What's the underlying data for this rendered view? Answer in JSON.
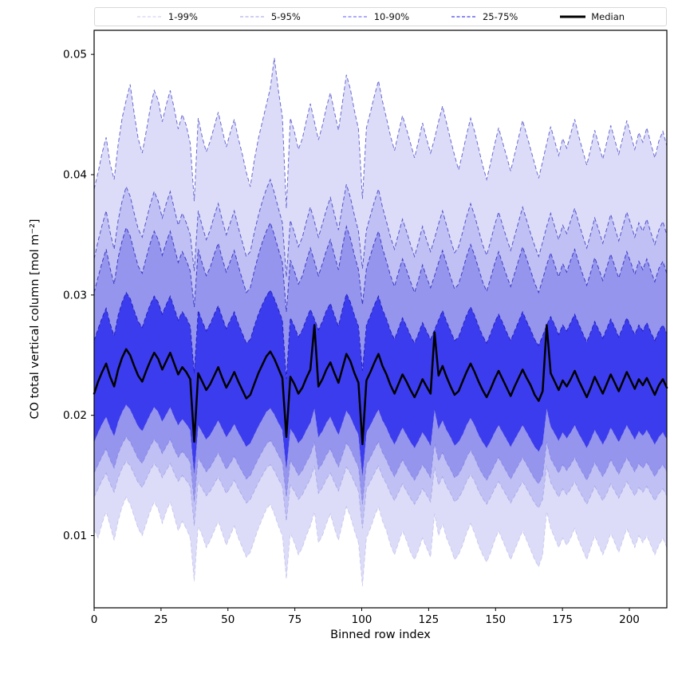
{
  "legend": {
    "items": [
      {
        "label": "1-99%",
        "color": "#d4d4f6",
        "dash": true,
        "width": 1.3
      },
      {
        "label": "5-95%",
        "color": "#b0b0f1",
        "dash": true,
        "width": 1.3
      },
      {
        "label": "10-90%",
        "color": "#7b7bf7",
        "dash": true,
        "width": 1.3
      },
      {
        "label": "25-75%",
        "color": "#4444ee",
        "dash": true,
        "width": 1.3
      },
      {
        "label": "Median",
        "color": "#000000",
        "dash": false,
        "width": 3
      }
    ]
  },
  "chart_data": {
    "type": "area",
    "title": "",
    "xlabel": "Binned row index",
    "ylabel": "CO total vertical column [mol m⁻²]",
    "legend_position": "top",
    "grid": false,
    "background": "#ffffff",
    "xlim": [
      0,
      214
    ],
    "ylim": [
      0.004,
      0.052
    ],
    "xticks": [
      0,
      25,
      50,
      75,
      100,
      125,
      150,
      175,
      200
    ],
    "xtick_labels": [
      "0",
      "25",
      "50",
      "75",
      "100",
      "125",
      "150",
      "175",
      "200"
    ],
    "yticks": [
      0.01,
      0.02,
      0.03,
      0.04,
      0.05
    ],
    "ytick_labels": [
      "0.01",
      "0.02",
      "0.03",
      "0.04",
      "0.05"
    ],
    "x_start": 0,
    "x_step": 1.4965,
    "value_scale": 0.0001,
    "units": "mol m⁻²",
    "bands": [
      {
        "label": "1-99%",
        "lower": "p01",
        "upper": "p99",
        "fill": "#dcdcf8",
        "edge": "#6a6ad2"
      },
      {
        "label": "5-95%",
        "lower": "p05",
        "upper": "p95",
        "fill": "#c0c0f4",
        "edge": "#5454cc"
      },
      {
        "label": "10-90%",
        "lower": "p10",
        "upper": "p90",
        "fill": "#9595ee",
        "edge": "#3c3cc6"
      },
      {
        "label": "25-75%",
        "lower": "p25",
        "upper": "p75",
        "fill": "#3c3cef",
        "edge": "#2222bd"
      }
    ],
    "median": {
      "label": "Median",
      "color": "#000000",
      "width": 2.5
    },
    "percentiles": {
      "p99": [
        388,
        402,
        418,
        431,
        409,
        396,
        425,
        447,
        462,
        475,
        451,
        430,
        418,
        436,
        455,
        470,
        462,
        444,
        458,
        470,
        455,
        438,
        450,
        441,
        426,
        378,
        447,
        431,
        419,
        428,
        440,
        452,
        437,
        423,
        435,
        446,
        430,
        417,
        402,
        390,
        412,
        430,
        444,
        458,
        472,
        497,
        470,
        448,
        372,
        447,
        436,
        421,
        430,
        445,
        459,
        444,
        429,
        441,
        456,
        468,
        452,
        437,
        460,
        483,
        471,
        453,
        438,
        380,
        439,
        452,
        466,
        478,
        461,
        447,
        432,
        420,
        435,
        449,
        438,
        426,
        414,
        428,
        443,
        430,
        418,
        430,
        444,
        457,
        443,
        429,
        416,
        404,
        418,
        433,
        447,
        436,
        422,
        408,
        396,
        410,
        425,
        439,
        427,
        415,
        403,
        417,
        431,
        445,
        433,
        421,
        409,
        397,
        411,
        426,
        440,
        428,
        416,
        430,
        422,
        434,
        446,
        432,
        420,
        408,
        422,
        437,
        425,
        413,
        427,
        441,
        429,
        417,
        431,
        445,
        433,
        421,
        435,
        427,
        439,
        426,
        414,
        428,
        436,
        424
      ],
      "p95": [
        330,
        345,
        358,
        370,
        352,
        338,
        362,
        378,
        390,
        382,
        368,
        355,
        348,
        362,
        375,
        386,
        378,
        364,
        376,
        386,
        372,
        358,
        368,
        360,
        350,
        320,
        370,
        357,
        346,
        354,
        366,
        376,
        362,
        350,
        360,
        370,
        356,
        344,
        332,
        336,
        352,
        366,
        378,
        388,
        396,
        385,
        372,
        360,
        315,
        362,
        352,
        340,
        348,
        361,
        373,
        361,
        348,
        359,
        371,
        381,
        367,
        354,
        374,
        392,
        381,
        366,
        353,
        322,
        354,
        366,
        378,
        388,
        373,
        361,
        348,
        338,
        351,
        363,
        353,
        342,
        332,
        344,
        357,
        346,
        336,
        347,
        359,
        370,
        358,
        346,
        335,
        340,
        352,
        365,
        376,
        366,
        354,
        342,
        333,
        345,
        358,
        369,
        358,
        347,
        337,
        349,
        361,
        373,
        362,
        351,
        341,
        332,
        344,
        357,
        368,
        357,
        346,
        358,
        351,
        362,
        372,
        360,
        349,
        339,
        351,
        364,
        354,
        343,
        355,
        367,
        356,
        345,
        357,
        369,
        359,
        348,
        360,
        353,
        363,
        352,
        342,
        354,
        361,
        350
      ],
      "p90": [
        302,
        315,
        327,
        338,
        322,
        309,
        331,
        345,
        356,
        349,
        336,
        324,
        318,
        331,
        343,
        353,
        346,
        333,
        344,
        353,
        340,
        327,
        336,
        329,
        320,
        290,
        338,
        326,
        316,
        323,
        334,
        343,
        330,
        319,
        328,
        337,
        324,
        313,
        302,
        306,
        320,
        333,
        344,
        353,
        360,
        350,
        338,
        327,
        286,
        329,
        320,
        309,
        316,
        328,
        339,
        328,
        316,
        326,
        337,
        346,
        333,
        321,
        340,
        357,
        347,
        333,
        321,
        292,
        322,
        333,
        344,
        353,
        339,
        328,
        316,
        307,
        319,
        330,
        321,
        311,
        302,
        313,
        325,
        315,
        306,
        316,
        327,
        337,
        326,
        315,
        305,
        309,
        320,
        332,
        342,
        333,
        322,
        311,
        303,
        314,
        326,
        336,
        326,
        316,
        307,
        318,
        329,
        340,
        330,
        320,
        310,
        302,
        313,
        325,
        335,
        325,
        315,
        326,
        319,
        329,
        338,
        327,
        317,
        308,
        319,
        331,
        322,
        312,
        323,
        334,
        324,
        314,
        325,
        336,
        327,
        317,
        328,
        321,
        330,
        320,
        311,
        322,
        328,
        318
      ],
      "p75": [
        262,
        272,
        281,
        289,
        276,
        266,
        283,
        294,
        302,
        297,
        287,
        278,
        273,
        283,
        292,
        299,
        294,
        284,
        292,
        299,
        289,
        279,
        286,
        281,
        274,
        235,
        287,
        278,
        270,
        276,
        284,
        291,
        281,
        272,
        279,
        286,
        276,
        268,
        260,
        263,
        274,
        284,
        292,
        299,
        304,
        297,
        288,
        279,
        230,
        281,
        274,
        265,
        271,
        280,
        288,
        280,
        271,
        278,
        287,
        293,
        283,
        274,
        288,
        301,
        294,
        283,
        274,
        237,
        275,
        283,
        292,
        299,
        288,
        280,
        270,
        263,
        272,
        281,
        274,
        266,
        260,
        268,
        277,
        270,
        263,
        271,
        279,
        287,
        278,
        270,
        262,
        265,
        274,
        283,
        290,
        283,
        274,
        266,
        260,
        268,
        277,
        284,
        277,
        269,
        262,
        270,
        278,
        286,
        278,
        271,
        263,
        258,
        266,
        275,
        282,
        275,
        267,
        275,
        270,
        277,
        284,
        276,
        268,
        261,
        269,
        278,
        271,
        264,
        272,
        280,
        273,
        265,
        273,
        281,
        274,
        267,
        275,
        270,
        277,
        269,
        262,
        270,
        275,
        268
      ],
      "median": [
        218,
        228,
        236,
        243,
        232,
        224,
        238,
        248,
        255,
        250,
        241,
        233,
        228,
        237,
        245,
        252,
        247,
        238,
        245,
        252,
        243,
        234,
        240,
        236,
        230,
        178,
        235,
        228,
        221,
        226,
        233,
        240,
        231,
        223,
        229,
        236,
        228,
        221,
        214,
        217,
        226,
        235,
        242,
        249,
        253,
        247,
        239,
        231,
        182,
        232,
        226,
        218,
        223,
        231,
        238,
        275,
        224,
        230,
        238,
        244,
        235,
        227,
        239,
        251,
        245,
        235,
        227,
        176,
        229,
        236,
        244,
        251,
        241,
        234,
        225,
        218,
        226,
        234,
        228,
        221,
        215,
        222,
        230,
        224,
        218,
        269,
        233,
        241,
        232,
        224,
        217,
        220,
        228,
        236,
        243,
        236,
        228,
        221,
        215,
        222,
        230,
        237,
        230,
        223,
        216,
        224,
        231,
        238,
        231,
        225,
        217,
        212,
        220,
        275,
        235,
        228,
        221,
        229,
        224,
        230,
        237,
        229,
        222,
        215,
        223,
        232,
        225,
        218,
        226,
        234,
        227,
        220,
        228,
        236,
        229,
        222,
        230,
        225,
        231,
        224,
        217,
        225,
        230,
        223
      ],
      "p25": [
        178,
        186,
        193,
        199,
        190,
        183,
        195,
        203,
        209,
        205,
        198,
        191,
        187,
        194,
        201,
        207,
        203,
        195,
        201,
        207,
        199,
        192,
        197,
        193,
        188,
        152,
        192,
        186,
        180,
        184,
        190,
        196,
        189,
        182,
        187,
        193,
        186,
        180,
        174,
        177,
        184,
        191,
        197,
        203,
        206,
        201,
        194,
        188,
        156,
        189,
        184,
        177,
        181,
        188,
        194,
        206,
        182,
        187,
        194,
        199,
        191,
        184,
        194,
        204,
        199,
        191,
        184,
        150,
        186,
        192,
        199,
        205,
        196,
        190,
        182,
        176,
        183,
        190,
        184,
        178,
        173,
        179,
        186,
        181,
        175,
        205,
        189,
        196,
        188,
        182,
        175,
        178,
        184,
        192,
        198,
        192,
        184,
        178,
        173,
        179,
        186,
        192,
        186,
        180,
        174,
        180,
        186,
        192,
        186,
        180,
        174,
        170,
        177,
        206,
        191,
        185,
        179,
        186,
        181,
        186,
        192,
        185,
        179,
        173,
        180,
        188,
        182,
        176,
        182,
        190,
        184,
        178,
        185,
        192,
        186,
        180,
        187,
        183,
        188,
        182,
        176,
        182,
        186,
        180
      ],
      "p10": [
        152,
        159,
        166,
        172,
        163,
        156,
        168,
        176,
        182,
        178,
        171,
        164,
        160,
        167,
        174,
        180,
        176,
        168,
        174,
        180,
        172,
        165,
        170,
        166,
        161,
        128,
        165,
        159,
        153,
        157,
        163,
        169,
        162,
        155,
        160,
        166,
        159,
        153,
        147,
        150,
        157,
        164,
        170,
        176,
        179,
        174,
        167,
        161,
        132,
        162,
        157,
        150,
        154,
        161,
        167,
        178,
        155,
        160,
        167,
        172,
        164,
        157,
        167,
        177,
        172,
        164,
        157,
        126,
        159,
        165,
        172,
        178,
        169,
        163,
        155,
        149,
        156,
        163,
        157,
        151,
        146,
        152,
        159,
        154,
        148,
        177,
        162,
        169,
        161,
        155,
        148,
        151,
        157,
        165,
        171,
        165,
        157,
        151,
        146,
        152,
        159,
        165,
        159,
        153,
        147,
        153,
        159,
        165,
        159,
        153,
        147,
        143,
        150,
        178,
        164,
        158,
        152,
        159,
        154,
        159,
        165,
        158,
        152,
        146,
        153,
        161,
        155,
        149,
        155,
        163,
        157,
        151,
        158,
        165,
        159,
        153,
        160,
        156,
        161,
        155,
        149,
        155,
        159,
        153
      ],
      "p05": [
        132,
        139,
        146,
        152,
        143,
        136,
        148,
        156,
        162,
        158,
        151,
        144,
        140,
        147,
        154,
        160,
        156,
        148,
        154,
        160,
        152,
        145,
        150,
        146,
        141,
        108,
        145,
        139,
        133,
        137,
        143,
        149,
        142,
        135,
        140,
        146,
        139,
        133,
        127,
        130,
        137,
        144,
        150,
        156,
        159,
        154,
        147,
        141,
        112,
        142,
        137,
        130,
        134,
        141,
        147,
        158,
        135,
        140,
        147,
        152,
        144,
        137,
        147,
        157,
        152,
        144,
        137,
        106,
        139,
        145,
        152,
        158,
        149,
        143,
        135,
        129,
        136,
        143,
        137,
        131,
        126,
        132,
        139,
        134,
        128,
        157,
        142,
        149,
        141,
        135,
        128,
        131,
        137,
        145,
        151,
        145,
        137,
        131,
        126,
        132,
        139,
        145,
        139,
        133,
        127,
        133,
        139,
        145,
        139,
        133,
        127,
        123,
        130,
        158,
        144,
        138,
        132,
        139,
        134,
        139,
        145,
        138,
        132,
        126,
        133,
        141,
        135,
        129,
        135,
        143,
        137,
        131,
        138,
        145,
        139,
        133,
        140,
        136,
        141,
        135,
        129,
        135,
        139,
        133
      ],
      "p01": [
        105,
        98,
        110,
        120,
        108,
        96,
        112,
        124,
        132,
        126,
        116,
        106,
        100,
        110,
        120,
        128,
        122,
        110,
        120,
        128,
        116,
        104,
        112,
        106,
        98,
        62,
        108,
        100,
        90,
        96,
        104,
        112,
        102,
        92,
        100,
        108,
        98,
        90,
        82,
        86,
        96,
        106,
        114,
        122,
        126,
        118,
        108,
        100,
        64,
        102,
        94,
        84,
        90,
        100,
        108,
        120,
        94,
        100,
        110,
        118,
        106,
        96,
        110,
        124,
        116,
        104,
        94,
        58,
        98,
        106,
        116,
        124,
        112,
        104,
        92,
        84,
        94,
        104,
        96,
        86,
        80,
        88,
        98,
        90,
        82,
        118,
        100,
        110,
        98,
        90,
        80,
        84,
        92,
        102,
        110,
        102,
        92,
        84,
        78,
        86,
        96,
        104,
        96,
        88,
        80,
        88,
        96,
        104,
        96,
        88,
        80,
        74,
        84,
        120,
        106,
        98,
        90,
        98,
        92,
        98,
        106,
        96,
        88,
        80,
        90,
        100,
        92,
        84,
        92,
        102,
        94,
        86,
        96,
        106,
        98,
        90,
        100,
        94,
        100,
        92,
        84,
        92,
        98,
        90
      ]
    }
  }
}
